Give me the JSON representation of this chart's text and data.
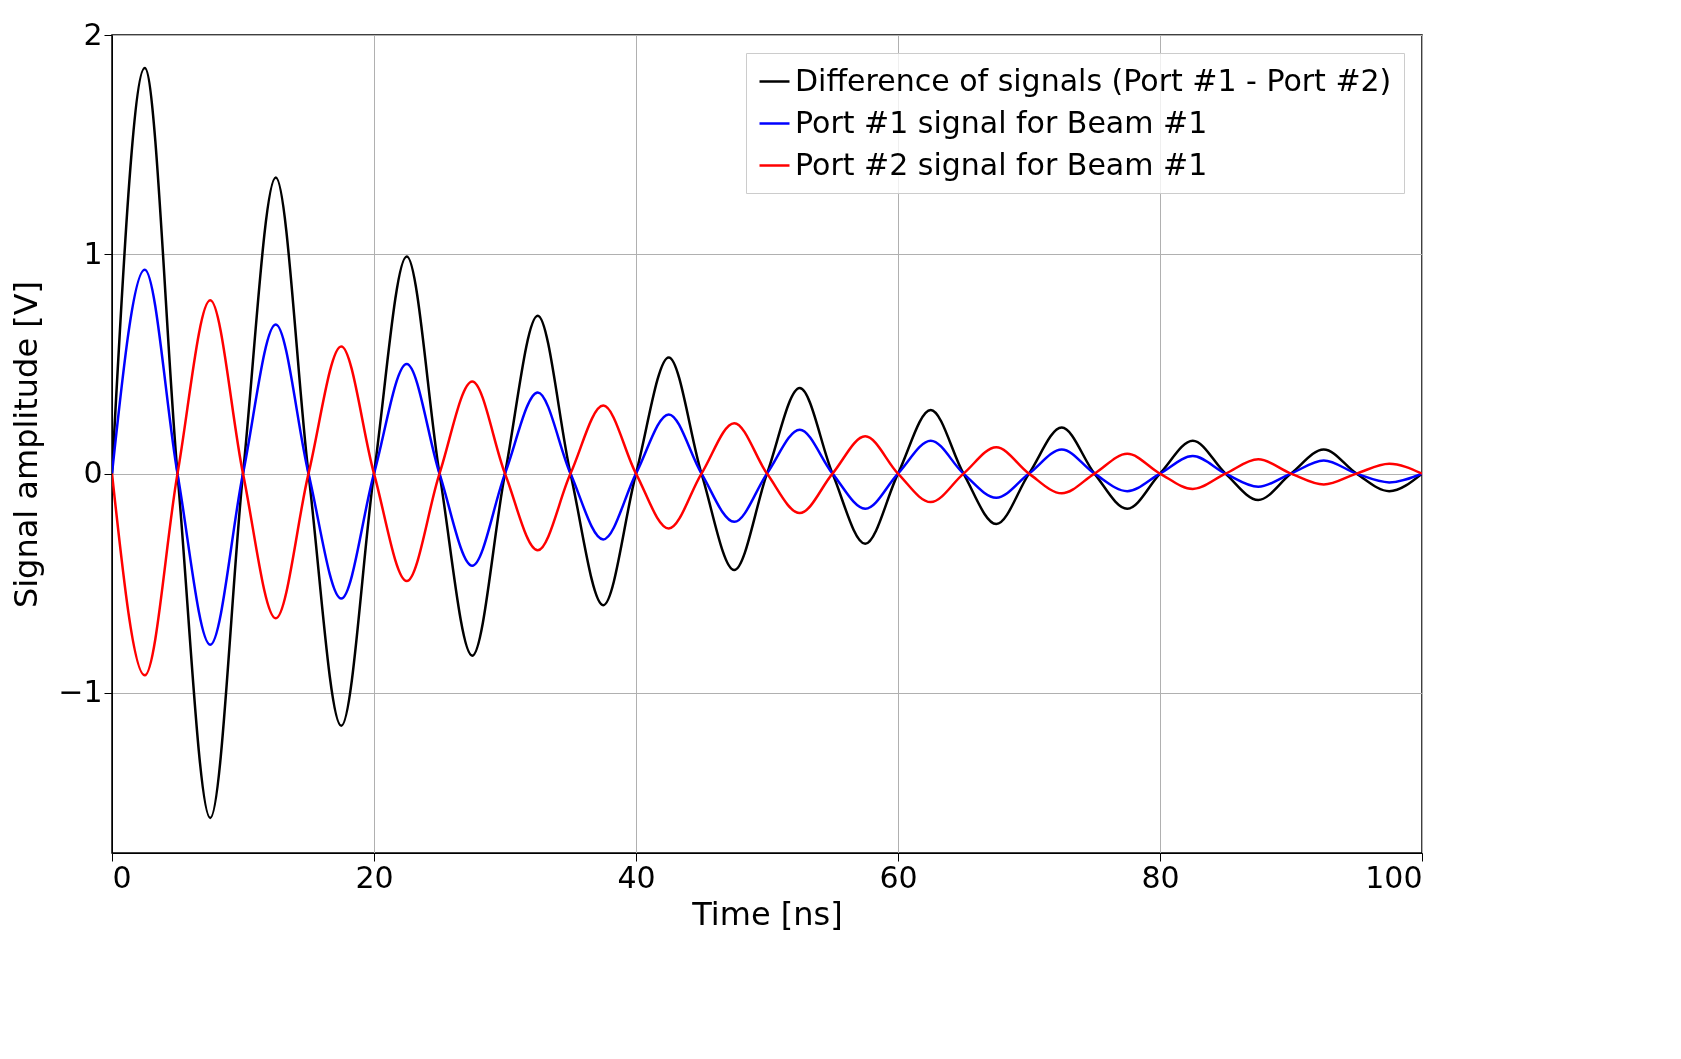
{
  "chart_data": {
    "type": "line",
    "xlabel": "Time [ns]",
    "ylabel": "Signal amplitude [V]",
    "x": [
      0,
      2.5,
      5,
      7.5,
      10,
      12.5,
      15,
      17.5,
      20,
      22.5,
      25,
      27.5,
      30,
      32.5,
      35,
      37.5,
      40,
      42.5,
      45,
      47.5,
      50,
      52.5,
      55,
      57.5,
      60,
      62.5,
      65,
      67.5,
      70,
      72.5,
      75,
      77.5,
      80,
      82.5,
      85,
      87.5,
      90,
      92.5,
      95,
      97.5,
      100
    ],
    "series": [
      {
        "name": "Difference of signals (Port #1 - Port #2)",
        "color": "#000000",
        "values": [
          0,
          1.85,
          0,
          -1.57,
          0,
          1.35,
          0,
          -1.15,
          0,
          0.99,
          0,
          -0.83,
          0,
          0.72,
          0,
          -0.6,
          0,
          0.53,
          0,
          -0.44,
          0,
          0.39,
          0,
          -0.32,
          0,
          0.29,
          0,
          -0.23,
          0,
          0.21,
          0,
          -0.16,
          0,
          0.15,
          0,
          -0.12,
          0,
          0.11,
          0,
          -0.08,
          0
        ]
      },
      {
        "name": "Port #1 signal for Beam #1",
        "color": "#0000ff",
        "values": [
          0,
          0.93,
          0,
          -0.78,
          0,
          0.68,
          0,
          -0.57,
          0,
          0.5,
          0,
          -0.42,
          0,
          0.37,
          0,
          -0.3,
          0,
          0.27,
          0,
          -0.22,
          0,
          0.2,
          0,
          -0.16,
          0,
          0.15,
          0,
          -0.11,
          0,
          0.11,
          0,
          -0.08,
          0,
          0.08,
          0,
          -0.06,
          0,
          0.06,
          0,
          -0.04,
          0
        ]
      },
      {
        "name": "Port #2 signal for Beam #1",
        "color": "#ff0000",
        "values": [
          0,
          -0.92,
          0,
          0.79,
          0,
          -0.66,
          0,
          0.58,
          0,
          -0.49,
          0,
          0.42,
          0,
          -0.35,
          0,
          0.31,
          0,
          -0.25,
          0,
          0.23,
          0,
          -0.18,
          0,
          0.17,
          0,
          -0.13,
          0,
          0.12,
          0,
          -0.09,
          0,
          0.09,
          0,
          -0.07,
          0,
          0.065,
          0,
          -0.05,
          0,
          0.045,
          0
        ]
      }
    ],
    "xlim": [
      0,
      100
    ],
    "xticks": [
      0,
      20,
      40,
      60,
      80,
      100
    ],
    "ylim": [
      -1.73,
      2.0
    ],
    "yticks": [
      -1,
      0,
      1,
      2
    ],
    "grid": true,
    "legend": "top right",
    "marker": "none",
    "line_style": "solid"
  }
}
